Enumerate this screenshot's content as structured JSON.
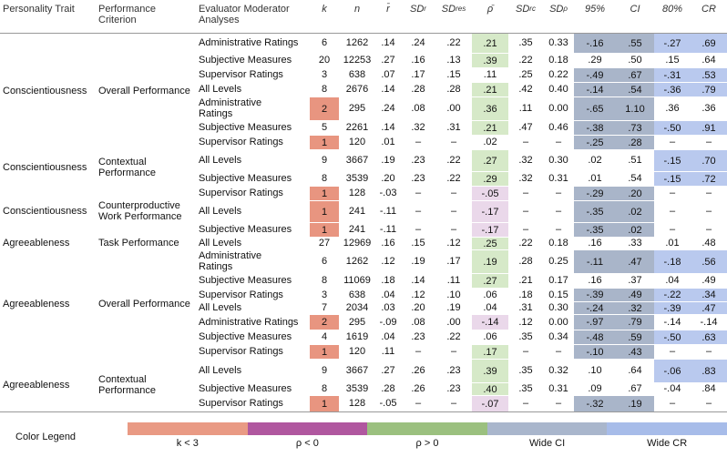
{
  "header": [
    {
      "text": "Personality Trait"
    },
    {
      "text": "Performance Criterion"
    },
    {
      "text": "Evaluator Moderator Analyses"
    },
    {
      "text": "k"
    },
    {
      "text": "n"
    },
    {
      "text": "r̄"
    },
    {
      "text": "SD",
      "sub": "r"
    },
    {
      "text": "SD",
      "sub": "res"
    },
    {
      "text": "ρ̄"
    },
    {
      "text": "SD",
      "sub": "rc"
    },
    {
      "text": "SD",
      "sub": "ρ"
    },
    {
      "text": "95%"
    },
    {
      "text": "CI"
    },
    {
      "text": "80%"
    },
    {
      "text": "CR"
    }
  ],
  "groups": [
    {
      "trait": "Conscientiousness",
      "criterion": "Overall Performance",
      "rows": [
        [
          "Administrative Ratings",
          "6",
          "1262",
          ".14",
          ".24",
          ".22",
          ".21",
          ".35",
          "0.33",
          "-.16",
          ".55",
          "-.27",
          ".69"
        ],
        [
          "Subjective Measures",
          "20",
          "12253",
          ".27",
          ".16",
          ".13",
          ".39",
          ".22",
          "0.18",
          ".29",
          ".50",
          ".15",
          ".64"
        ],
        [
          "Supervisor Ratings",
          "3",
          "638",
          ".07",
          ".17",
          ".15",
          ".11",
          ".25",
          "0.22",
          "-.49",
          ".67",
          "-.31",
          ".53"
        ],
        [
          "All Levels",
          "8",
          "2676",
          ".14",
          ".28",
          ".28",
          ".21",
          ".42",
          "0.40",
          "-.14",
          ".54",
          "-.36",
          ".79"
        ],
        [
          "Administrative Ratings",
          "2",
          "295",
          ".24",
          ".08",
          ".00",
          ".36",
          ".11",
          "0.00",
          "-.65",
          "1.10",
          ".36",
          ".36"
        ],
        [
          "Subjective Measures",
          "5",
          "2261",
          ".14",
          ".32",
          ".31",
          ".21",
          ".47",
          "0.46",
          "-.38",
          ".73",
          "-.50",
          ".91"
        ],
        [
          "Supervisor Ratings",
          "1",
          "120",
          ".01",
          "–",
          "–",
          ".02",
          "–",
          "–",
          "-.25",
          ".28",
          "–",
          "–"
        ]
      ]
    },
    {
      "trait": "Conscientiousness",
      "criterion": "Contextual Performance",
      "rows": [
        [
          "All Levels",
          "9",
          "3667",
          ".19",
          ".23",
          ".22",
          ".27",
          ".32",
          "0.30",
          ".02",
          ".51",
          "-.15",
          ".70"
        ],
        [
          "Subjective Measures",
          "8",
          "3539",
          ".20",
          ".23",
          ".22",
          ".29",
          ".32",
          "0.31",
          ".01",
          ".54",
          "-.15",
          ".72"
        ]
      ]
    },
    {
      "trait": "Conscientiousness",
      "criterion": "Counterproductive Work Performance",
      "rows": [
        [
          "Supervisor Ratings",
          "1",
          "128",
          "-.03",
          "–",
          "–",
          "-.05",
          "–",
          "–",
          "-.29",
          ".20",
          "–",
          "–"
        ],
        [
          "All Levels",
          "1",
          "241",
          "-.11",
          "–",
          "–",
          "-.17",
          "–",
          "–",
          "-.35",
          ".02",
          "–",
          "–"
        ],
        [
          "Subjective Measures",
          "1",
          "241",
          "-.11",
          "–",
          "–",
          "-.17",
          "–",
          "–",
          "-.35",
          ".02",
          "–",
          "–"
        ]
      ]
    },
    {
      "trait": "Agreeableness",
      "criterion": "Task Performance",
      "rows": [
        [
          "All Levels",
          "27",
          "12969",
          ".16",
          ".15",
          ".12",
          ".25",
          ".22",
          "0.18",
          ".16",
          ".33",
          ".01",
          ".48"
        ]
      ]
    },
    {
      "trait": "Agreeableness",
      "criterion": "Overall Performance",
      "rows": [
        [
          "Administrative Ratings",
          "6",
          "1262",
          ".12",
          ".19",
          ".17",
          ".19",
          ".28",
          "0.25",
          "-.11",
          ".47",
          "-.18",
          ".56"
        ],
        [
          "Subjective Measures",
          "8",
          "11069",
          ".18",
          ".14",
          ".11",
          ".27",
          ".21",
          "0.17",
          ".16",
          ".37",
          ".04",
          ".49"
        ],
        [
          "Supervisor Ratings",
          "3",
          "638",
          ".04",
          ".12",
          ".10",
          ".06",
          ".18",
          "0.15",
          "-.39",
          ".49",
          "-.22",
          ".34"
        ],
        [
          "All Levels",
          "7",
          "2034",
          ".03",
          ".20",
          ".19",
          ".04",
          ".31",
          "0.30",
          "-.24",
          ".32",
          "-.39",
          ".47"
        ],
        [
          "Administrative Ratings",
          "2",
          "295",
          "-.09",
          ".08",
          ".00",
          "-.14",
          ".12",
          "0.00",
          "-.97",
          ".79",
          "-.14",
          "-.14"
        ],
        [
          "Subjective Measures",
          "4",
          "1619",
          ".04",
          ".23",
          ".22",
          ".06",
          ".35",
          "0.34",
          "-.48",
          ".59",
          "-.50",
          ".63"
        ],
        [
          "Supervisor Ratings",
          "1",
          "120",
          ".11",
          "–",
          "–",
          ".17",
          "–",
          "–",
          "-.10",
          ".43",
          "–",
          "–"
        ]
      ]
    },
    {
      "trait": "Agreeableness",
      "criterion": "Contextual Performance",
      "rows": [
        [
          "All Levels",
          "9",
          "3667",
          ".27",
          ".26",
          ".23",
          ".39",
          ".35",
          "0.32",
          ".10",
          ".64",
          "-.06",
          ".83"
        ],
        [
          "Subjective Measures",
          "8",
          "3539",
          ".28",
          ".26",
          ".23",
          ".40",
          ".35",
          "0.31",
          ".09",
          ".67",
          "-.04",
          ".84"
        ],
        [
          "Supervisor Ratings",
          "1",
          "128",
          "-.05",
          "–",
          "–",
          "-.07",
          "–",
          "–",
          "-.32",
          ".19",
          "–",
          "–"
        ]
      ]
    }
  ],
  "legend": {
    "title": "Color Legend",
    "items": [
      {
        "label": "k < 3",
        "color": "#e99a84"
      },
      {
        "label": "ρ < 0",
        "color": "#b0579f"
      },
      {
        "label": "ρ > 0",
        "color": "#9bc07f"
      },
      {
        "label": "Wide CI",
        "color": "#a9b6cc"
      },
      {
        "label": "Wide CR",
        "color": "#a7bce9"
      }
    ]
  }
}
